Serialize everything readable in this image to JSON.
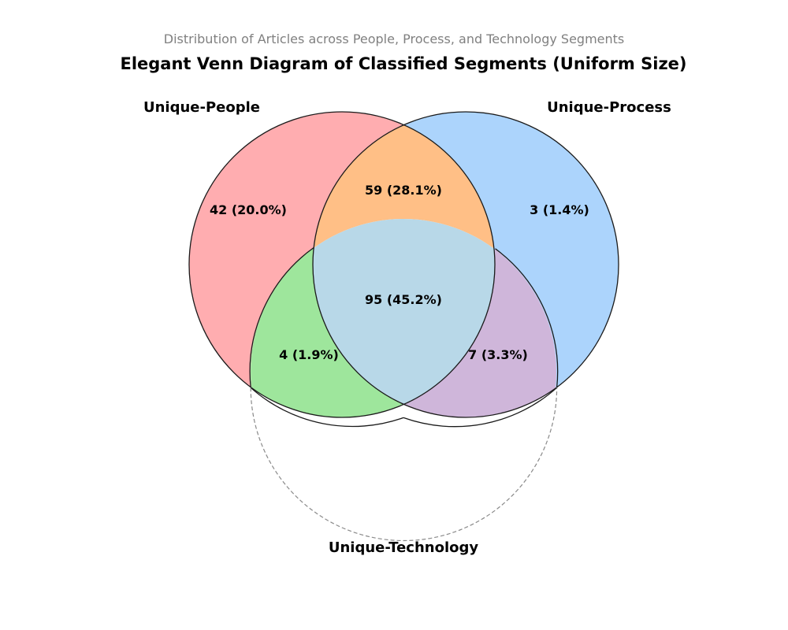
{
  "chart_data": {
    "type": "venn",
    "subtitle": "Distribution of Articles across People, Process, and Technology Segments",
    "title": "Elegant Venn Diagram of Classified Segments (Uniform Size)",
    "sets": [
      {
        "key": "people",
        "name": "Unique-People"
      },
      {
        "key": "process",
        "name": "Unique-Process"
      },
      {
        "key": "technology",
        "name": "Unique-Technology"
      }
    ],
    "regions": [
      {
        "key": "people_only",
        "sets": [
          "people"
        ],
        "value": 42,
        "label": "42 (20.0%)",
        "color": "#ffadb0"
      },
      {
        "key": "process_only",
        "sets": [
          "process"
        ],
        "value": 3,
        "label": "3 (1.4%)",
        "color": "#acd4fc"
      },
      {
        "key": "people_process",
        "sets": [
          "people",
          "process"
        ],
        "value": 59,
        "label": "59 (28.1%)",
        "color": "#ffbf86"
      },
      {
        "key": "people_technology",
        "sets": [
          "people",
          "technology"
        ],
        "value": 4,
        "label": "4 (1.9%)",
        "color": "#9ee69c"
      },
      {
        "key": "process_technology",
        "sets": [
          "process",
          "technology"
        ],
        "value": 7,
        "label": "7 (3.3%)",
        "color": "#cfb6da"
      },
      {
        "key": "all_three",
        "sets": [
          "people",
          "process",
          "technology"
        ],
        "value": 95,
        "label": "95 (45.2%)",
        "color": "#b8d8e8"
      }
    ]
  }
}
